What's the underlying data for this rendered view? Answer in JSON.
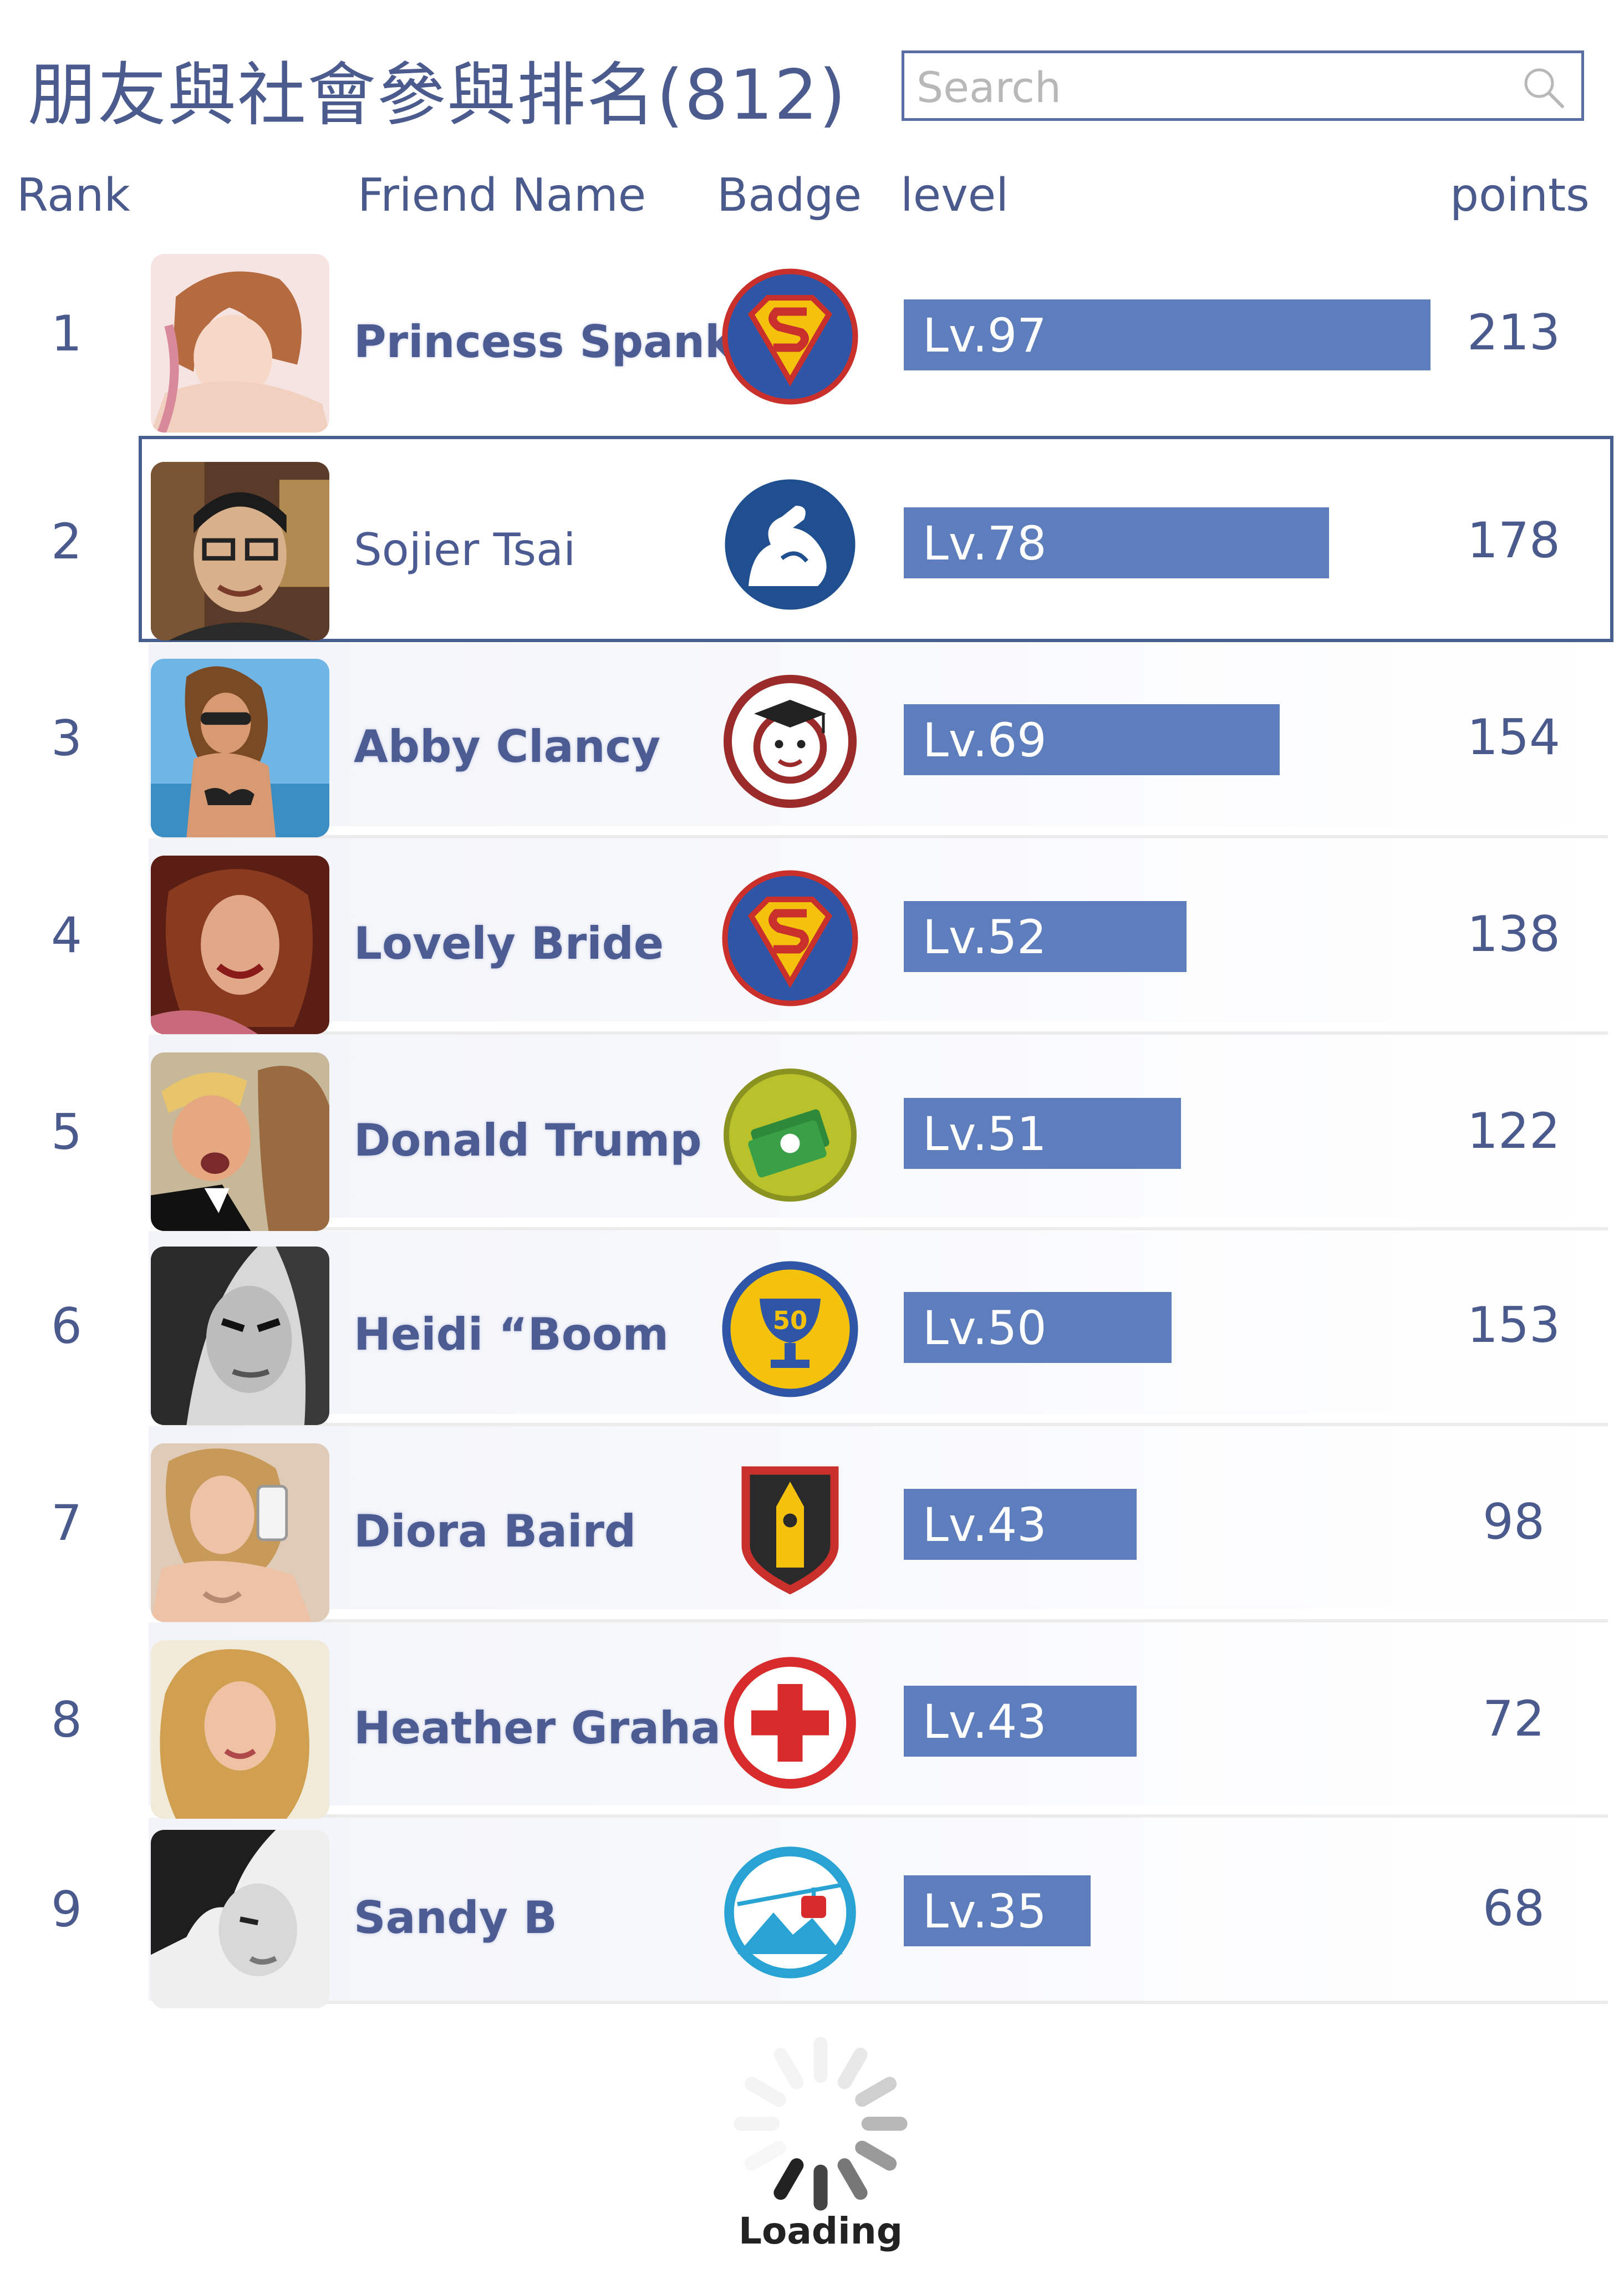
{
  "header": {
    "title": "朋友與社會參與排名(812)",
    "search_placeholder": "Search",
    "search_icon": "magnifier"
  },
  "columns": {
    "rank": "Rank",
    "name": "Friend Name",
    "badge": "Badge",
    "level": "level",
    "points": "points"
  },
  "rows": [
    {
      "rank": "1",
      "name": "Princess Spanky",
      "badge": "superman-badge",
      "level": "Lv.97",
      "level_fraction": 0.95,
      "points": "213",
      "selected": false
    },
    {
      "rank": "2",
      "name": "Sojier Tsai",
      "badge": "muscle-arm-badge",
      "level": "Lv.78",
      "level_fraction": 0.767,
      "points": "178",
      "selected": true
    },
    {
      "rank": "3",
      "name": "Abby Clancy",
      "badge": "graduate-face-badge",
      "level": "Lv.69",
      "level_fraction": 0.678,
      "points": "154",
      "selected": false
    },
    {
      "rank": "4",
      "name": "Lovely Bride",
      "badge": "superman-badge",
      "level": "Lv.52",
      "level_fraction": 0.51,
      "points": "138",
      "selected": false
    },
    {
      "rank": "5",
      "name": "Donald Trump",
      "badge": "money-badge",
      "level": "Lv.51",
      "level_fraction": 0.5,
      "points": "122",
      "selected": false
    },
    {
      "rank": "6",
      "name": "Heidi “Boom",
      "badge": "trophy-50-badge",
      "level": "Lv.50",
      "level_fraction": 0.483,
      "points": "153",
      "selected": false
    },
    {
      "rank": "7",
      "name": "Diora Baird",
      "badge": "big-ben-badge",
      "level": "Lv.43",
      "level_fraction": 0.42,
      "points": "98",
      "selected": false
    },
    {
      "rank": "8",
      "name": "Heather  Graha",
      "badge": "red-cross-badge",
      "level": "Lv.43",
      "level_fraction": 0.42,
      "points": "72",
      "selected": false
    },
    {
      "rank": "9",
      "name": "Sandy B",
      "badge": "cable-car-badge",
      "level": "Lv.35",
      "level_fraction": 0.337,
      "points": "68",
      "selected": false
    }
  ],
  "badge_texts": {
    "trophy": "50"
  },
  "colors": {
    "bar": "#5d7dbd",
    "text": "#4a5a8c",
    "highlight_border": "#475f90"
  },
  "footer": {
    "loading_label": "Loading"
  }
}
